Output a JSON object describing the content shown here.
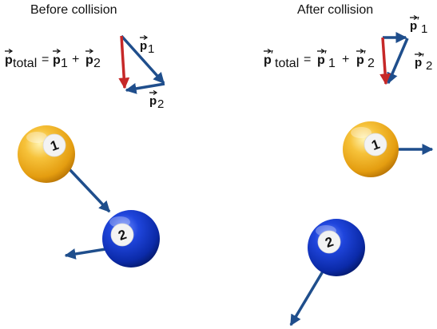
{
  "headings": {
    "before": "Before collision",
    "after": "After collision"
  },
  "before": {
    "equation": {
      "lhs_symbol": "p",
      "lhs_subscript": "total",
      "equals": "=",
      "term1_symbol": "p",
      "term1_subscript": "1",
      "plus": "+",
      "term2_symbol": "p",
      "term2_subscript": "2"
    },
    "vector_labels": {
      "p1_symbol": "p",
      "p1_subscript": "1",
      "p2_symbol": "p",
      "p2_subscript": "2"
    },
    "balls": {
      "ball1_number": "1",
      "ball2_number": "2"
    }
  },
  "after": {
    "equation": {
      "lhs_symbol": "p",
      "prime": "′",
      "lhs_subscript": "total",
      "equals": "=",
      "term1_symbol": "p",
      "term1_subscript": "1",
      "plus": "+",
      "term2_symbol": "p",
      "term2_subscript": "2"
    },
    "vector_labels": {
      "p1_symbol": "p",
      "p1_subscript": "1",
      "p2_symbol": "p",
      "p2_subscript": "2"
    },
    "balls": {
      "ball1_number": "1",
      "ball2_number": "2"
    }
  },
  "colors": {
    "momentum_arrow": "#1f4e8c",
    "total_arrow": "#c62828",
    "ball1": "#f2b21b",
    "ball2": "#1036c4"
  }
}
